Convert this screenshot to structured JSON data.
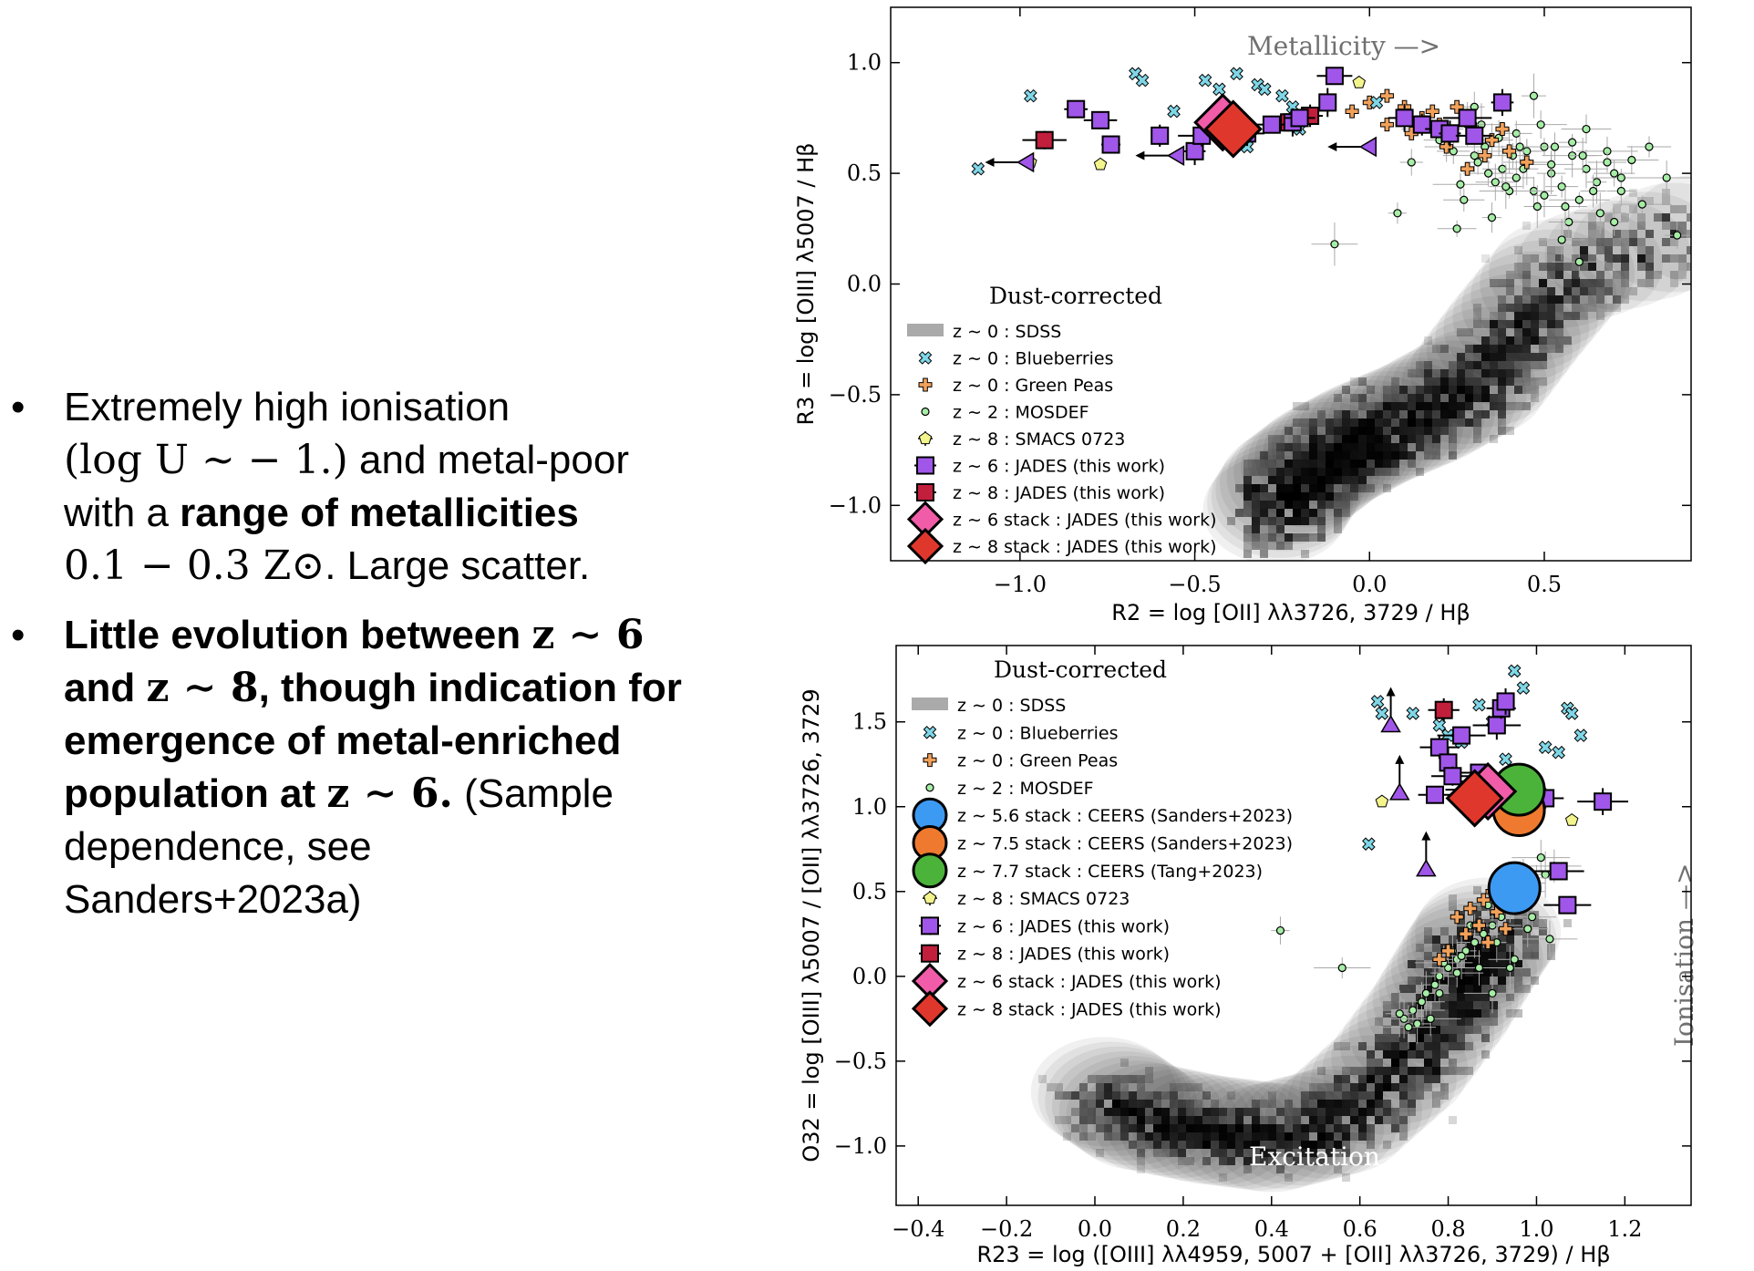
{
  "bullets": [
    {
      "runs": [
        {
          "t": "Extremely high ionisation",
          "s": "n"
        },
        {
          "t": "\n",
          "s": "n"
        },
        {
          "t": "(log U ∼ − 1.)",
          "s": "m"
        },
        {
          "t": " and metal-poor",
          "s": "n"
        },
        {
          "t": "\n",
          "s": "n"
        },
        {
          "t": "with a ",
          "s": "n"
        },
        {
          "t": "range of metallicities",
          "s": "b"
        },
        {
          "t": "\n",
          "s": "n"
        },
        {
          "t": "0.1 − 0.3 Z⊙",
          "s": "m"
        },
        {
          "t": ". Large scatter.",
          "s": "n"
        }
      ]
    },
    {
      "runs": [
        {
          "t": "Little evolution between ",
          "s": "b"
        },
        {
          "t": "z ∼ 6",
          "s": "mb"
        },
        {
          "t": "\n",
          "s": "n"
        },
        {
          "t": "and ",
          "s": "b"
        },
        {
          "t": "z ∼ 8",
          "s": "mb"
        },
        {
          "t": ", though indication for",
          "s": "b"
        },
        {
          "t": "\n",
          "s": "n"
        },
        {
          "t": "emergence of metal-enriched",
          "s": "b"
        },
        {
          "t": "\n",
          "s": "n"
        },
        {
          "t": "population at ",
          "s": "b"
        },
        {
          "t": "z ∼ 6.",
          "s": "mb"
        },
        {
          "t": " (Sample",
          "s": "n"
        },
        {
          "t": "\n",
          "s": "n"
        },
        {
          "t": "dependence, see",
          "s": "n"
        },
        {
          "t": "\n",
          "s": "n"
        },
        {
          "t": "Sanders+2023a)",
          "s": "n"
        }
      ]
    }
  ],
  "chart_data": [
    {
      "type": "scatter",
      "xlabel": "R2 = log [OII] λλ3726, 3729 / Hβ",
      "ylabel": "R3 = log [OIII] λ5007 / Hβ",
      "xlim": [
        -1.37,
        0.92
      ],
      "ylim": [
        -1.25,
        1.25
      ],
      "xticks": [
        -1.0,
        -0.5,
        0.0,
        0.5
      ],
      "xticklabels": [
        "−1.0",
        "−0.5",
        "0.0",
        "0.5"
      ],
      "yticks": [
        -1.0,
        -0.5,
        0.0,
        0.5,
        1.0
      ],
      "yticklabels": [
        "−1.0",
        "−0.5",
        "0.0",
        "0.5",
        "1.0"
      ],
      "annotation": "Metallicity —>",
      "legend_title": "Dust-corrected",
      "legend_position": "lower-left",
      "legend": [
        "z ∼ 0 : SDSS",
        "z ∼ 0 : Blueberries",
        "z ∼ 0 : Green Peas",
        "z ∼ 2 : MOSDEF",
        "z ∼ 8 : SMACS 0723",
        "z ∼ 6 : JADES (this work)",
        "z ∼ 8 : JADES (this work)",
        "z ∼ 6 stack : JADES (this work)",
        "z ∼ 8 stack : JADES (this work)"
      ],
      "sdss_ridge": [
        [
          0.95,
          0.25
        ],
        [
          0.55,
          0.05
        ],
        [
          0.42,
          -0.2
        ],
        [
          0.3,
          -0.45
        ],
        [
          0.15,
          -0.58
        ],
        [
          0.0,
          -0.68
        ],
        [
          -0.12,
          -0.78
        ],
        [
          -0.22,
          -0.9
        ],
        [
          -0.28,
          -1.05
        ]
      ],
      "series": [
        {
          "name": "z ∼ 0 : Blueberries",
          "x": [
            -1.12,
            -0.97,
            -0.67,
            -0.65,
            -0.56,
            -0.47,
            -0.38,
            -0.32,
            -0.25,
            -0.22,
            -0.4,
            -0.3,
            -0.2,
            0.02,
            -0.35,
            -0.43
          ],
          "y": [
            0.52,
            0.85,
            0.95,
            0.92,
            0.78,
            0.92,
            0.95,
            0.9,
            0.85,
            0.8,
            0.72,
            0.88,
            0.7,
            0.82,
            0.62,
            0.88
          ]
        },
        {
          "name": "z ∼ 0 : Green Peas",
          "x": [
            -0.05,
            0.0,
            0.05,
            0.1,
            0.15,
            0.2,
            0.25,
            0.3,
            0.35,
            0.4,
            0.45,
            0.12,
            0.22,
            0.33,
            0.05,
            0.28,
            0.18,
            0.38
          ],
          "y": [
            0.78,
            0.82,
            0.85,
            0.8,
            0.75,
            0.72,
            0.8,
            0.7,
            0.65,
            0.6,
            0.55,
            0.68,
            0.62,
            0.58,
            0.72,
            0.52,
            0.78,
            0.7
          ]
        },
        {
          "name": "z ∼ 2 : MOSDEF",
          "x": [
            0.08,
            0.12,
            0.18,
            0.22,
            0.26,
            0.3,
            0.32,
            0.35,
            0.38,
            0.4,
            0.42,
            0.45,
            0.47,
            0.5,
            0.52,
            0.55,
            0.58,
            0.6,
            0.62,
            0.65,
            0.68,
            0.7,
            0.72,
            0.75,
            0.78,
            0.8,
            0.85,
            0.88,
            0.35,
            0.25,
            0.4,
            0.5,
            0.55,
            0.6,
            0.45,
            0.3,
            0.2,
            -0.1,
            0.47,
            0.62,
            0.7,
            0.28,
            0.33,
            0.37,
            0.52,
            0.58,
            0.66,
            0.42,
            0.48,
            0.44,
            0.57,
            0.64,
            0.68,
            0.36,
            0.41,
            0.53,
            0.72,
            0.27,
            0.31,
            0.24,
            0.34,
            0.39,
            0.43,
            0.49,
            0.56,
            0.61
          ],
          "y": [
            0.32,
            0.55,
            0.7,
            0.62,
            0.45,
            0.58,
            0.72,
            0.65,
            0.52,
            0.6,
            0.48,
            0.55,
            0.42,
            0.62,
            0.5,
            0.44,
            0.58,
            0.38,
            0.52,
            0.46,
            0.6,
            0.5,
            0.42,
            0.56,
            0.36,
            0.62,
            0.48,
            0.22,
            0.3,
            0.25,
            0.42,
            0.4,
            0.2,
            0.1,
            0.6,
            0.8,
            0.65,
            0.18,
            0.85,
            0.7,
            0.28,
            0.72,
            0.62,
            0.66,
            0.54,
            0.64,
            0.32,
            0.68,
            0.35,
            0.52,
            0.28,
            0.42,
            0.55,
            0.46,
            0.58,
            0.62,
            0.48,
            0.38,
            0.55,
            0.6,
            0.5,
            0.44,
            0.62,
            0.72,
            0.35,
            0.58
          ]
        },
        {
          "name": "z ∼ 8 : SMACS 0723",
          "x": [
            -0.97,
            -0.77,
            -0.03
          ],
          "y": [
            0.55,
            0.54,
            0.91
          ]
        },
        {
          "name": "z ∼ 6 : JADES (this work)",
          "x": [
            -0.84,
            -0.77,
            -0.74,
            -0.6,
            -0.5,
            -0.48,
            -0.35,
            -0.28,
            -0.22,
            -0.2,
            -0.12,
            -0.1,
            0.1,
            0.15,
            0.2,
            0.23,
            0.28,
            0.3,
            0.38
          ],
          "y": [
            0.79,
            0.74,
            0.63,
            0.67,
            0.6,
            0.67,
            0.68,
            0.72,
            0.73,
            0.75,
            0.82,
            0.94,
            0.75,
            0.72,
            0.7,
            0.68,
            0.75,
            0.67,
            0.82
          ]
        },
        {
          "name": "z ∼ 8 : JADES (this work)",
          "x": [
            -0.93,
            -0.23,
            -0.17
          ],
          "y": [
            0.65,
            0.73,
            0.76
          ]
        },
        {
          "name": "z ∼ 6 stack : JADES (this work)",
          "x": [
            -0.42
          ],
          "y": [
            0.73
          ]
        },
        {
          "name": "z ∼ 8 stack : JADES (this work)",
          "x": [
            -0.39
          ],
          "y": [
            0.7
          ]
        },
        {
          "name": "upper limits (z ∼ 6)",
          "x": [
            -0.98,
            -0.55,
            0.0
          ],
          "y": [
            0.55,
            0.58,
            0.62
          ]
        }
      ]
    },
    {
      "type": "scatter",
      "xlabel": "R23 = log ([OIII] λλ4959, 5007 + [OII] λλ3726, 3729) / Hβ",
      "ylabel": "O32 = log [OIII] λ5007 / [OII] λλ3726, 3729",
      "xlim": [
        -0.45,
        1.35
      ],
      "ylim": [
        -1.35,
        1.95
      ],
      "xticks": [
        -0.4,
        -0.2,
        0.0,
        0.2,
        0.4,
        0.6,
        0.8,
        1.0,
        1.2
      ],
      "xticklabels": [
        "−0.4",
        "−0.2",
        "0.0",
        "0.2",
        "0.4",
        "0.6",
        "0.8",
        "1.0",
        "1.2"
      ],
      "yticks": [
        -1.0,
        -0.5,
        0.0,
        0.5,
        1.0,
        1.5
      ],
      "yticklabels": [
        "−1.0",
        "−0.5",
        "0.0",
        "0.5",
        "1.0",
        "1.5"
      ],
      "annotation_x": "Excitation —>",
      "annotation_y": "Ionisation —>",
      "legend_title": "Dust-corrected",
      "legend_position": "upper-left",
      "legend": [
        "z ∼ 0 : SDSS",
        "z ∼ 0 : Blueberries",
        "z ∼ 0 : Green Peas",
        "z ∼ 2 : MOSDEF",
        "z ∼ 5.6 stack : CEERS (Sanders+2023)",
        "z ∼ 7.5 stack : CEERS (Sanders+2023)",
        "z ∼ 7.7 stack : CEERS (Tang+2023)",
        "z ∼ 8 : SMACS 0723",
        "z ∼ 6 : JADES (this work)",
        "z ∼ 8 : JADES (this work)",
        "z ∼ 6 stack : JADES (this work)",
        "z ∼ 8 stack : JADES (this work)"
      ],
      "sdss_ridge": [
        [
          0.02,
          -0.68
        ],
        [
          0.1,
          -0.82
        ],
        [
          0.25,
          -0.9
        ],
        [
          0.4,
          -0.95
        ],
        [
          0.55,
          -0.85
        ],
        [
          0.68,
          -0.55
        ],
        [
          0.78,
          -0.2
        ],
        [
          0.85,
          0.1
        ],
        [
          0.9,
          0.3
        ]
      ],
      "series": [
        {
          "name": "z ∼ 0 : Blueberries",
          "x": [
            0.64,
            0.65,
            0.72,
            0.78,
            0.8,
            0.83,
            0.87,
            0.9,
            0.93,
            0.97,
            1.02,
            1.05,
            1.07,
            1.08,
            1.1,
            0.62,
            0.95,
            0.98,
            0.89
          ],
          "y": [
            1.62,
            1.55,
            1.55,
            1.48,
            1.42,
            1.38,
            1.6,
            1.5,
            1.28,
            1.7,
            1.35,
            1.32,
            1.58,
            1.55,
            1.42,
            0.78,
            1.8,
            1.1,
            1.2
          ]
        },
        {
          "name": "z ∼ 0 : Green Peas",
          "x": [
            0.82,
            0.85,
            0.88,
            0.9,
            0.92,
            0.94,
            0.96,
            0.98,
            0.84,
            0.87,
            0.89,
            0.91,
            0.93,
            0.8,
            0.78,
            0.95
          ],
          "y": [
            0.35,
            0.4,
            0.45,
            0.5,
            0.55,
            0.42,
            0.6,
            0.48,
            0.25,
            0.3,
            0.2,
            0.38,
            0.28,
            0.15,
            0.1,
            0.52
          ]
        },
        {
          "name": "z ∼ 2 : MOSDEF",
          "x": [
            0.42,
            0.56,
            0.7,
            0.72,
            0.74,
            0.75,
            0.77,
            0.78,
            0.8,
            0.82,
            0.84,
            0.86,
            0.88,
            0.9,
            0.92,
            0.94,
            0.96,
            0.98,
            1.0,
            1.02,
            1.04,
            0.76,
            0.79,
            0.81,
            0.83,
            0.85,
            0.87,
            0.89,
            0.91,
            0.93,
            0.95,
            0.97,
            0.99,
            1.01,
            1.03,
            0.73,
            0.71,
            0.69,
            0.78,
            0.82,
            0.86,
            0.9,
            0.94,
            0.98
          ],
          "y": [
            0.27,
            0.05,
            -0.25,
            -0.2,
            -0.15,
            -0.1,
            -0.05,
            0.0,
            0.05,
            0.1,
            0.15,
            0.2,
            0.25,
            0.3,
            0.35,
            0.4,
            0.45,
            0.5,
            0.55,
            0.6,
            0.65,
            -0.25,
            0.08,
            0.15,
            0.12,
            0.3,
            0.05,
            0.42,
            0.2,
            0.52,
            0.1,
            0.58,
            0.35,
            0.7,
            0.22,
            -0.28,
            -0.3,
            -0.22,
            -0.1,
            0.02,
            0.3,
            -0.1,
            0.05,
            0.28
          ]
        },
        {
          "name": "z ∼ 8 : SMACS 0723",
          "x": [
            0.65,
            1.08
          ],
          "y": [
            1.03,
            0.92
          ]
        },
        {
          "name": "z ∼ 6 : JADES (this work)",
          "x": [
            0.77,
            0.78,
            0.8,
            0.81,
            0.83,
            0.87,
            0.88,
            0.91,
            0.92,
            0.93,
            0.97,
            1.02,
            1.05,
            1.07,
            1.15
          ],
          "y": [
            1.07,
            1.35,
            1.26,
            1.18,
            1.42,
            1.2,
            1.15,
            1.48,
            1.58,
            1.62,
            1.12,
            1.05,
            0.62,
            0.42,
            1.03
          ]
        },
        {
          "name": "z ∼ 8 : JADES (this work)",
          "x": [
            0.79,
            0.85,
            0.92
          ],
          "y": [
            1.57,
            1.1,
            1.12
          ]
        },
        {
          "name": "z ∼ 5.6 stack : CEERS (Sanders+2023)",
          "x": [
            0.95
          ],
          "y": [
            0.52
          ]
        },
        {
          "name": "z ∼ 7.5 stack : CEERS (Sanders+2023)",
          "x": [
            0.96
          ],
          "y": [
            0.98
          ]
        },
        {
          "name": "z ∼ 7.7 stack : CEERS (Tang+2023)",
          "x": [
            0.96
          ],
          "y": [
            1.1
          ]
        },
        {
          "name": "z ∼ 6 stack : JADES (this work)",
          "x": [
            0.89
          ],
          "y": [
            1.09
          ]
        },
        {
          "name": "z ∼ 8 stack : JADES (this work)",
          "x": [
            0.86
          ],
          "y": [
            1.05
          ]
        },
        {
          "name": "lower limits (z ∼ 6)",
          "x": [
            0.67,
            0.69,
            0.75
          ],
          "y": [
            1.48,
            1.08,
            0.63
          ]
        }
      ]
    }
  ],
  "colors": {
    "blueberry": "#7fd6e6",
    "greenpea": "#f2a15a",
    "mosdef": "#a6eda6",
    "smacs": "#f3f58c",
    "jades6": "#a056e8",
    "jades8": "#c21f3c",
    "stack6": "#f05ca8",
    "stack8": "#e0372c",
    "ceers56": "#3d9af2",
    "ceers75": "#ef7a2f",
    "tang77": "#4cb33a",
    "sdss": "#000000",
    "annotation": "#707070"
  }
}
